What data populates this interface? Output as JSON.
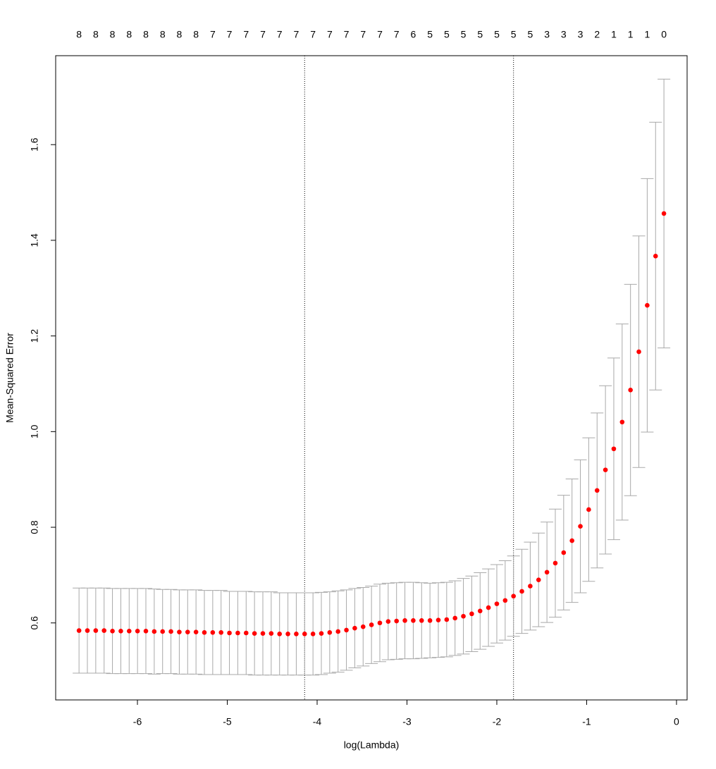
{
  "chart_data": {
    "type": "scatter",
    "x_label": "log(Lambda)",
    "y_label": "Mean-Squared Error",
    "x": [
      -6.65,
      -6.557,
      -6.464,
      -6.371,
      -6.278,
      -6.185,
      -6.092,
      -5.999,
      -5.906,
      -5.813,
      -5.72,
      -5.627,
      -5.534,
      -5.441,
      -5.348,
      -5.255,
      -5.162,
      -5.069,
      -4.976,
      -4.883,
      -4.79,
      -4.697,
      -4.604,
      -4.511,
      -4.418,
      -4.325,
      -4.232,
      -4.139,
      -4.046,
      -3.953,
      -3.86,
      -3.767,
      -3.674,
      -3.581,
      -3.488,
      -3.395,
      -3.302,
      -3.209,
      -3.116,
      -3.023,
      -2.93,
      -2.837,
      -2.744,
      -2.651,
      -2.558,
      -2.465,
      -2.372,
      -2.279,
      -2.186,
      -2.093,
      -2.0,
      -1.907,
      -1.814,
      -1.721,
      -1.628,
      -1.535,
      -1.442,
      -1.349,
      -1.256,
      -1.163,
      -1.07,
      -0.977,
      -0.884,
      -0.791,
      -0.698,
      -0.605,
      -0.512,
      -0.419,
      -0.326,
      -0.233,
      -0.14
    ],
    "values": [
      0.584,
      0.584,
      0.584,
      0.584,
      0.583,
      0.583,
      0.583,
      0.583,
      0.583,
      0.582,
      0.582,
      0.582,
      0.581,
      0.581,
      0.581,
      0.58,
      0.58,
      0.58,
      0.579,
      0.579,
      0.579,
      0.578,
      0.578,
      0.578,
      0.577,
      0.577,
      0.577,
      0.577,
      0.577,
      0.578,
      0.58,
      0.582,
      0.585,
      0.589,
      0.592,
      0.596,
      0.6,
      0.603,
      0.604,
      0.605,
      0.605,
      0.605,
      0.605,
      0.606,
      0.607,
      0.61,
      0.614,
      0.619,
      0.625,
      0.632,
      0.64,
      0.647,
      0.656,
      0.666,
      0.677,
      0.69,
      0.706,
      0.725,
      0.747,
      0.772,
      0.802,
      0.837,
      0.877,
      0.92,
      0.964,
      1.02,
      1.087,
      1.167,
      1.264,
      1.367,
      1.456
    ],
    "errors": [
      0.089,
      0.089,
      0.089,
      0.089,
      0.089,
      0.089,
      0.089,
      0.089,
      0.089,
      0.089,
      0.088,
      0.088,
      0.088,
      0.088,
      0.088,
      0.088,
      0.088,
      0.088,
      0.087,
      0.087,
      0.087,
      0.087,
      0.087,
      0.087,
      0.086,
      0.086,
      0.086,
      0.086,
      0.086,
      0.086,
      0.085,
      0.085,
      0.084,
      0.083,
      0.082,
      0.081,
      0.081,
      0.08,
      0.08,
      0.08,
      0.08,
      0.079,
      0.078,
      0.078,
      0.078,
      0.078,
      0.079,
      0.079,
      0.08,
      0.081,
      0.082,
      0.083,
      0.084,
      0.088,
      0.092,
      0.098,
      0.105,
      0.113,
      0.12,
      0.129,
      0.139,
      0.15,
      0.162,
      0.176,
      0.19,
      0.205,
      0.221,
      0.242,
      0.265,
      0.28,
      0.281
    ],
    "color": "#ff0000",
    "error_color": "#a9a9a9",
    "vlines": [
      -4.139,
      -1.814
    ],
    "top_ticks": [
      {
        "value": -6.65,
        "label": "8"
      },
      {
        "value": -6.464,
        "label": "8"
      },
      {
        "value": -6.278,
        "label": "8"
      },
      {
        "value": -6.092,
        "label": "8"
      },
      {
        "value": -5.906,
        "label": "8"
      },
      {
        "value": -5.72,
        "label": "8"
      },
      {
        "value": -5.534,
        "label": "8"
      },
      {
        "value": -5.348,
        "label": "8"
      },
      {
        "value": -5.162,
        "label": "7"
      },
      {
        "value": -4.976,
        "label": "7"
      },
      {
        "value": -4.79,
        "label": "7"
      },
      {
        "value": -4.604,
        "label": "7"
      },
      {
        "value": -4.418,
        "label": "7"
      },
      {
        "value": -4.232,
        "label": "7"
      },
      {
        "value": -4.046,
        "label": "7"
      },
      {
        "value": -3.86,
        "label": "7"
      },
      {
        "value": -3.674,
        "label": "7"
      },
      {
        "value": -3.488,
        "label": "7"
      },
      {
        "value": -3.302,
        "label": "7"
      },
      {
        "value": -3.116,
        "label": "7"
      },
      {
        "value": -2.93,
        "label": "6"
      },
      {
        "value": -2.744,
        "label": "5"
      },
      {
        "value": -2.558,
        "label": "5"
      },
      {
        "value": -2.372,
        "label": "5"
      },
      {
        "value": -2.186,
        "label": "5"
      },
      {
        "value": -2.0,
        "label": "5"
      },
      {
        "value": -1.814,
        "label": "5"
      },
      {
        "value": -1.628,
        "label": "5"
      },
      {
        "value": -1.442,
        "label": "3"
      },
      {
        "value": -1.256,
        "label": "3"
      },
      {
        "value": -1.07,
        "label": "3"
      },
      {
        "value": -0.884,
        "label": "2"
      },
      {
        "value": -0.698,
        "label": "1"
      },
      {
        "value": -0.512,
        "label": "1"
      },
      {
        "value": -0.326,
        "label": "1"
      },
      {
        "value": -0.14,
        "label": "0"
      }
    ],
    "xlim": [
      -6.91,
      0.118
    ],
    "ylim": [
      0.439,
      1.786
    ],
    "xticks": [
      -6,
      -5,
      -4,
      -3,
      -2,
      -1,
      0
    ],
    "yticks": [
      0.6,
      0.8,
      {
        "value": 1.0,
        "label": "1.0"
      },
      1.2,
      1.4,
      1.6
    ]
  }
}
